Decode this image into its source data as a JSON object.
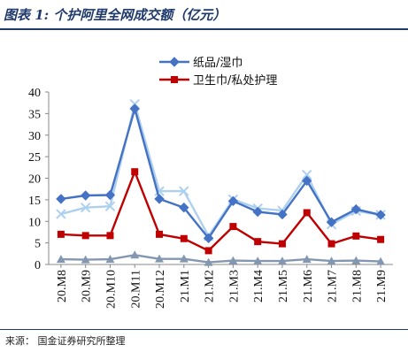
{
  "figure": {
    "title": "图表 1:  个护阿里全网成交额（亿元）",
    "source": "来源：  国金证券研究所整理"
  },
  "chart_data": {
    "type": "line",
    "title": "",
    "xlabel": "",
    "ylabel": "",
    "ylim": [
      0,
      40
    ],
    "yticks": [
      0,
      5,
      10,
      15,
      20,
      25,
      30,
      35,
      40
    ],
    "grid": false,
    "legend_position": "top-center",
    "categories": [
      "20.M8",
      "20.M9",
      "20.M10",
      "20.M11",
      "20.M12",
      "21.M1",
      "21.M2",
      "21.M3",
      "21.M4",
      "21.M5",
      "21.M6",
      "21.M7",
      "21.M8",
      "21.M9"
    ],
    "series": [
      {
        "name": "纸品/湿巾",
        "color": "#4472c4",
        "marker": "diamond",
        "in_legend": true,
        "values": [
          15.2,
          16.0,
          16.1,
          36.1,
          15.2,
          13.2,
          6.1,
          14.7,
          12.2,
          11.6,
          19.4,
          9.8,
          12.8,
          11.5
        ]
      },
      {
        "name": "卫生巾/私处护理",
        "color": "#c00000",
        "marker": "square",
        "in_legend": true,
        "values": [
          7.0,
          6.7,
          6.7,
          21.5,
          7.0,
          6.0,
          3.2,
          8.8,
          5.3,
          4.8,
          12.0,
          4.8,
          6.6,
          5.8
        ]
      },
      {
        "name": "",
        "color": "#aed0ef",
        "marker": "x",
        "in_legend": false,
        "values": [
          11.7,
          13.2,
          13.5,
          37.2,
          17.0,
          17.0,
          6.6,
          15.1,
          13.0,
          12.5,
          20.8,
          9.3,
          12.4,
          11.5
        ]
      },
      {
        "name": "",
        "color": "#8497b0",
        "marker": "triangle",
        "in_legend": false,
        "values": [
          1.2,
          1.1,
          1.2,
          2.2,
          1.3,
          1.3,
          0.5,
          0.9,
          0.8,
          0.8,
          1.2,
          0.8,
          0.9,
          0.7
        ]
      }
    ]
  }
}
